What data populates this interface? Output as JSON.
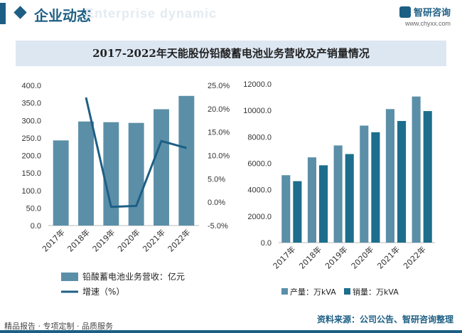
{
  "header": {
    "title": "企业动态",
    "subtitle_en": "Enterprise dynamic",
    "brand_name": "智研咨询",
    "brand_url": "www.chyxx.com"
  },
  "banner_title": "2017-2022年天能股份铅酸蓄电池业务营收及产销量情况",
  "colors": {
    "accent": "#1d5f84",
    "bar_light": "#5b8fa8",
    "bar_dark": "#1d6e8c",
    "line": "#1d5f84"
  },
  "chart_data": [
    {
      "type": "bar",
      "categories": [
        "2017年",
        "2018年",
        "2019年",
        "2020年",
        "2021年",
        "2022年"
      ],
      "series": [
        {
          "name": "铅酸蓄电池业务营收：亿元",
          "values": [
            243,
            297,
            295,
            293,
            332,
            370
          ]
        }
      ],
      "line_series": [
        {
          "name": "增速（%）",
          "values": [
            null,
            22.4,
            -1.0,
            -0.8,
            13.1,
            11.6
          ]
        }
      ],
      "ylim": [
        0,
        400
      ],
      "y_ticks": [
        "0.0",
        "50.0",
        "100.0",
        "150.0",
        "200.0",
        "250.0",
        "300.0",
        "350.0",
        "400.0"
      ],
      "y2lim": [
        -5,
        25
      ],
      "y2_ticks": [
        "-5.0%",
        "0.0%",
        "5.0%",
        "10.0%",
        "15.0%",
        "20.0%",
        "25.0%"
      ],
      "legend_position": "bottom"
    },
    {
      "type": "bar",
      "categories": [
        "2017年",
        "2018年",
        "2019年",
        "2020年",
        "2021年",
        "2022年"
      ],
      "series": [
        {
          "name": "产量：万kVA",
          "values": [
            5100,
            6450,
            7350,
            8850,
            10100,
            11050
          ]
        },
        {
          "name": "销量：万kVA",
          "values": [
            4650,
            5850,
            6700,
            8350,
            9200,
            9950
          ]
        }
      ],
      "ylim": [
        0,
        12000
      ],
      "y_ticks": [
        "0.0",
        "2000.0",
        "4000.0",
        "6000.0",
        "8000.0",
        "10000.0",
        "12000.0"
      ],
      "legend_position": "bottom"
    }
  ],
  "footer": {
    "left": "精品报告 · 专项定制 · 品质服务",
    "source": "资料来源：公司公告、智研咨询整理"
  }
}
